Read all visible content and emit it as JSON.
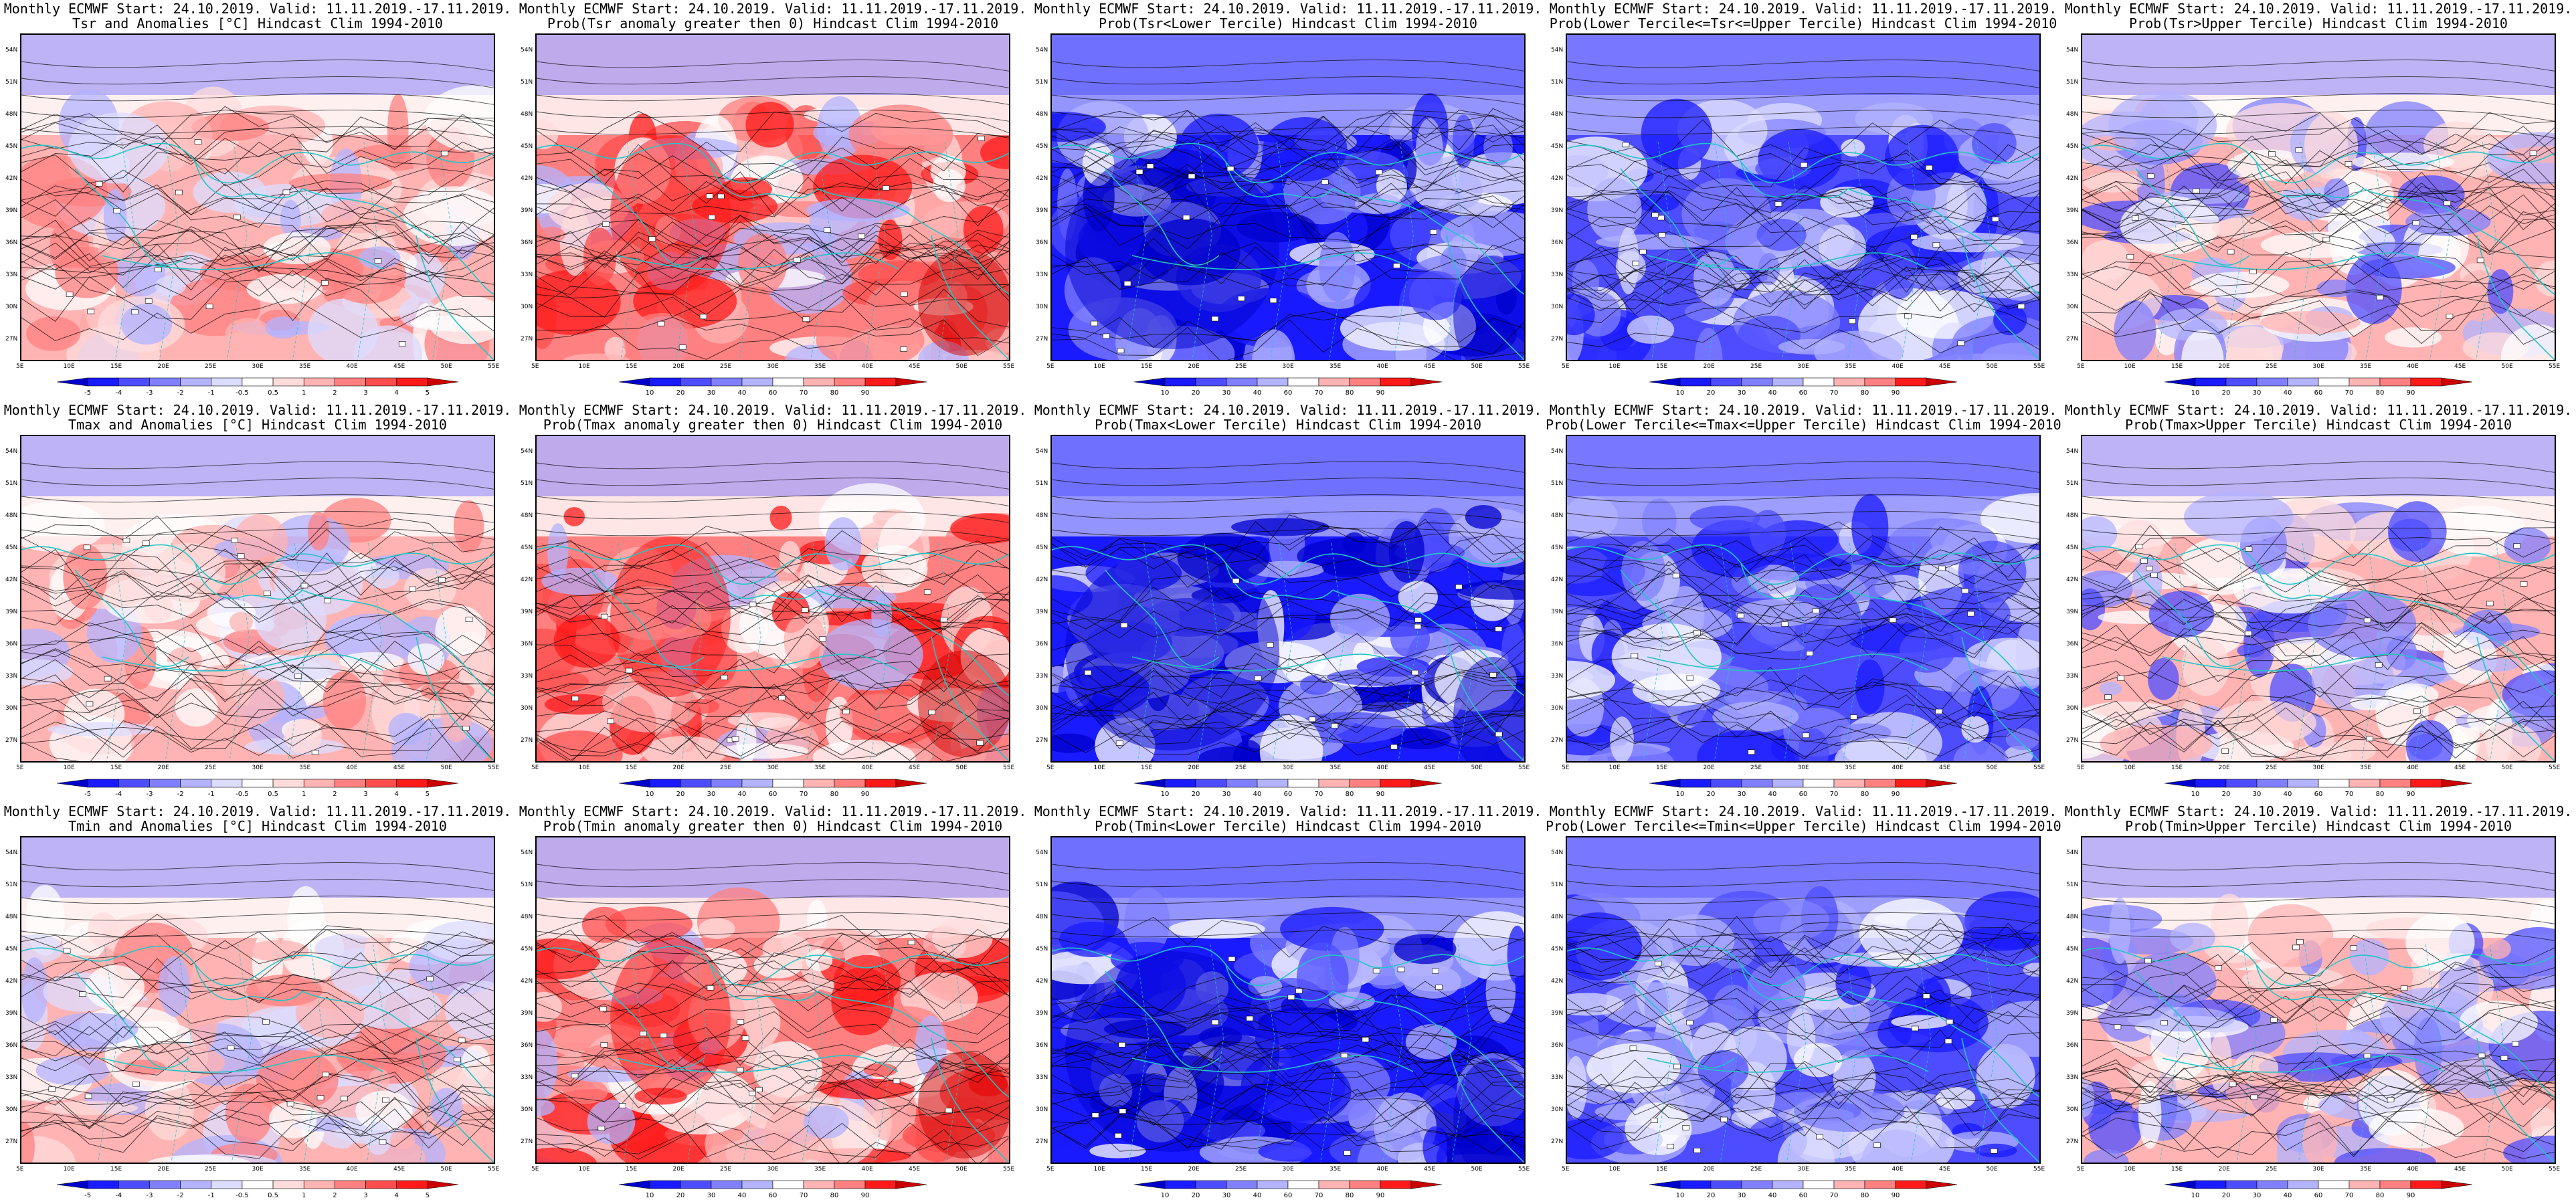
{
  "header_line": "Monthly ECMWF Start: 24.10.2019. Valid: 11.11.2019.-17.11.2019.",
  "axes": {
    "lat_labels": [
      "54N",
      "51N",
      "48N",
      "45N",
      "42N",
      "39N",
      "36N",
      "33N",
      "30N",
      "27N"
    ],
    "lon_labels": [
      "5E",
      "10E",
      "15E",
      "20E",
      "25E",
      "30E",
      "35E",
      "40E",
      "45E",
      "50E",
      "55E"
    ]
  },
  "scales": {
    "anomaly": {
      "labels": [
        "-5",
        "-4",
        "-3",
        "-2",
        "-1",
        "-0.5",
        "0.5",
        "1",
        "2",
        "3",
        "4",
        "5"
      ]
    },
    "probability": {
      "labels": [
        "10",
        "20",
        "30",
        "40",
        "60",
        "70",
        "80",
        "90"
      ]
    }
  },
  "colors": {
    "anomaly_scale": [
      "#0000cc",
      "#1a1aff",
      "#4d4dff",
      "#8080ff",
      "#b3b3ff",
      "#dcdcff",
      "#ffffff",
      "#ffdcdc",
      "#ffb3b3",
      "#ff8080",
      "#ff4d4d",
      "#ff1a1a",
      "#cc0000"
    ],
    "probability_scale": [
      "#0000cc",
      "#1a1aff",
      "#4d4dff",
      "#8080ff",
      "#b3b3ff",
      "#ffffff",
      "#ffb3b3",
      "#ff8080",
      "#ff1a1a",
      "#cc0000"
    ],
    "coastline": "#22c5c5",
    "contour": "#000000"
  },
  "panels": [
    {
      "title": "Tsr and Anomalies [°C] Hindcast Clim 1994-2010",
      "scale": "anomaly",
      "tint": "warm-light"
    },
    {
      "title": "Prob(Tsr anomaly greater then 0) Hindcast Clim 1994-2010",
      "scale": "probability",
      "tint": "warm"
    },
    {
      "title": "Prob(Tsr<Lower Tercile) Hindcast Clim 1994-2010",
      "scale": "probability",
      "tint": "blue-strong"
    },
    {
      "title": "Prob(Lower Tercile<=Tsr<=Upper Tercile) Hindcast Clim 1994-2010",
      "scale": "probability",
      "tint": "blue"
    },
    {
      "title": "Prob(Tsr>Upper Tercile) Hindcast Clim 1994-2010",
      "scale": "probability",
      "tint": "mixed"
    },
    {
      "title": "Tmax and Anomalies [°C] Hindcast Clim 1994-2010",
      "scale": "anomaly",
      "tint": "warm-light"
    },
    {
      "title": "Prob(Tmax anomaly greater then 0) Hindcast Clim 1994-2010",
      "scale": "probability",
      "tint": "warm"
    },
    {
      "title": "Prob(Tmax<Lower Tercile) Hindcast Clim 1994-2010",
      "scale": "probability",
      "tint": "blue-strong"
    },
    {
      "title": "Prob(Lower Tercile<=Tmax<=Upper Tercile) Hindcast Clim 1994-2010",
      "scale": "probability",
      "tint": "blue"
    },
    {
      "title": "Prob(Tmax>Upper Tercile) Hindcast Clim 1994-2010",
      "scale": "probability",
      "tint": "mixed"
    },
    {
      "title": "Tmin and Anomalies [°C] Hindcast Clim 1994-2010",
      "scale": "anomaly",
      "tint": "warm-light"
    },
    {
      "title": "Prob(Tmin anomaly greater then 0) Hindcast Clim 1994-2010",
      "scale": "probability",
      "tint": "warm"
    },
    {
      "title": "Prob(Tmin<Lower Tercile) Hindcast Clim 1994-2010",
      "scale": "probability",
      "tint": "blue-strong"
    },
    {
      "title": "Prob(Lower Tercile<=Tmin<=Upper Tercile) Hindcast Clim 1994-2010",
      "scale": "probability",
      "tint": "blue"
    },
    {
      "title": "Prob(Tmin>Upper Tercile) Hindcast Clim 1994-2010",
      "scale": "probability",
      "tint": "mixed"
    }
  ]
}
